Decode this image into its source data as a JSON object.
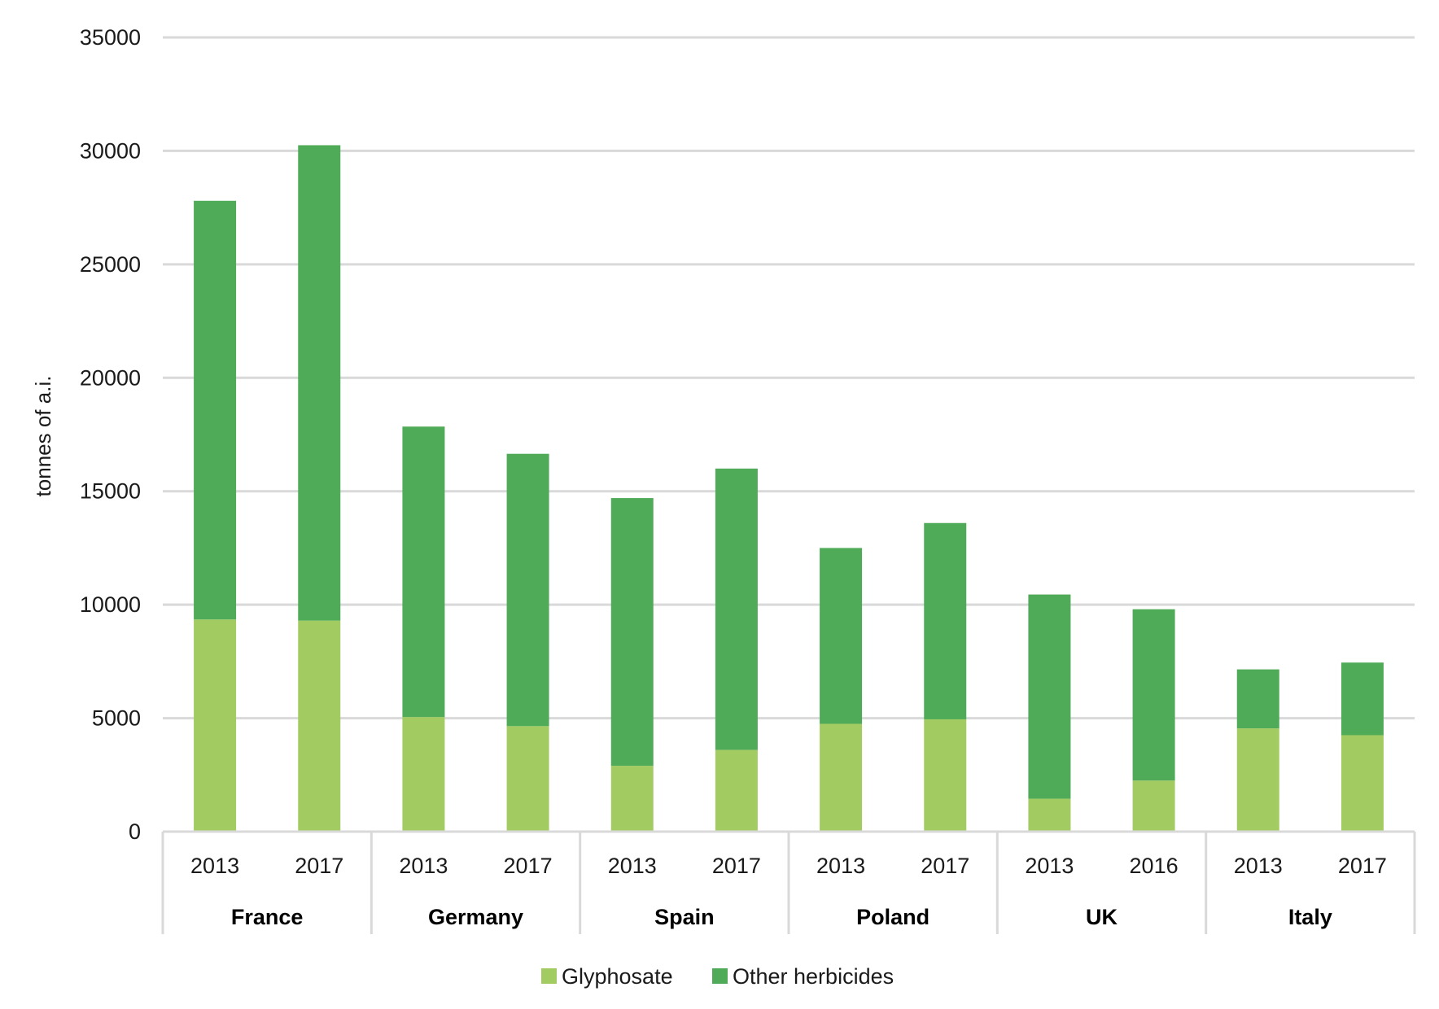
{
  "chart_data": {
    "type": "bar",
    "stacked": true,
    "title": "",
    "xlabel": "",
    "ylabel": "tonnes of a.i.",
    "ylim": [
      0,
      35000
    ],
    "yticks": [
      "0",
      "5000",
      "10000",
      "15000",
      "20000",
      "25000",
      "30000",
      "35000"
    ],
    "grid": true,
    "legend_position": "bottom",
    "groups": [
      {
        "country": "France",
        "years": [
          "2013",
          "2017"
        ]
      },
      {
        "country": "Germany",
        "years": [
          "2013",
          "2017"
        ]
      },
      {
        "country": "Spain",
        "years": [
          "2013",
          "2017"
        ]
      },
      {
        "country": "Poland",
        "years": [
          "2013",
          "2017"
        ]
      },
      {
        "country": "UK",
        "years": [
          "2013",
          "2016"
        ]
      },
      {
        "country": "Italy",
        "years": [
          "2013",
          "2017"
        ]
      }
    ],
    "series": [
      {
        "name": "Glyphosate",
        "color": "#a2cc62",
        "values": [
          9350,
          9300,
          5050,
          4650,
          2900,
          3600,
          4750,
          4950,
          1450,
          2250,
          4550,
          4250
        ]
      },
      {
        "name": "Other herbicides",
        "color": "#50ab59",
        "values": [
          18450,
          20950,
          12800,
          12000,
          11800,
          12400,
          7750,
          8650,
          9000,
          7550,
          2600,
          3200
        ]
      }
    ]
  }
}
